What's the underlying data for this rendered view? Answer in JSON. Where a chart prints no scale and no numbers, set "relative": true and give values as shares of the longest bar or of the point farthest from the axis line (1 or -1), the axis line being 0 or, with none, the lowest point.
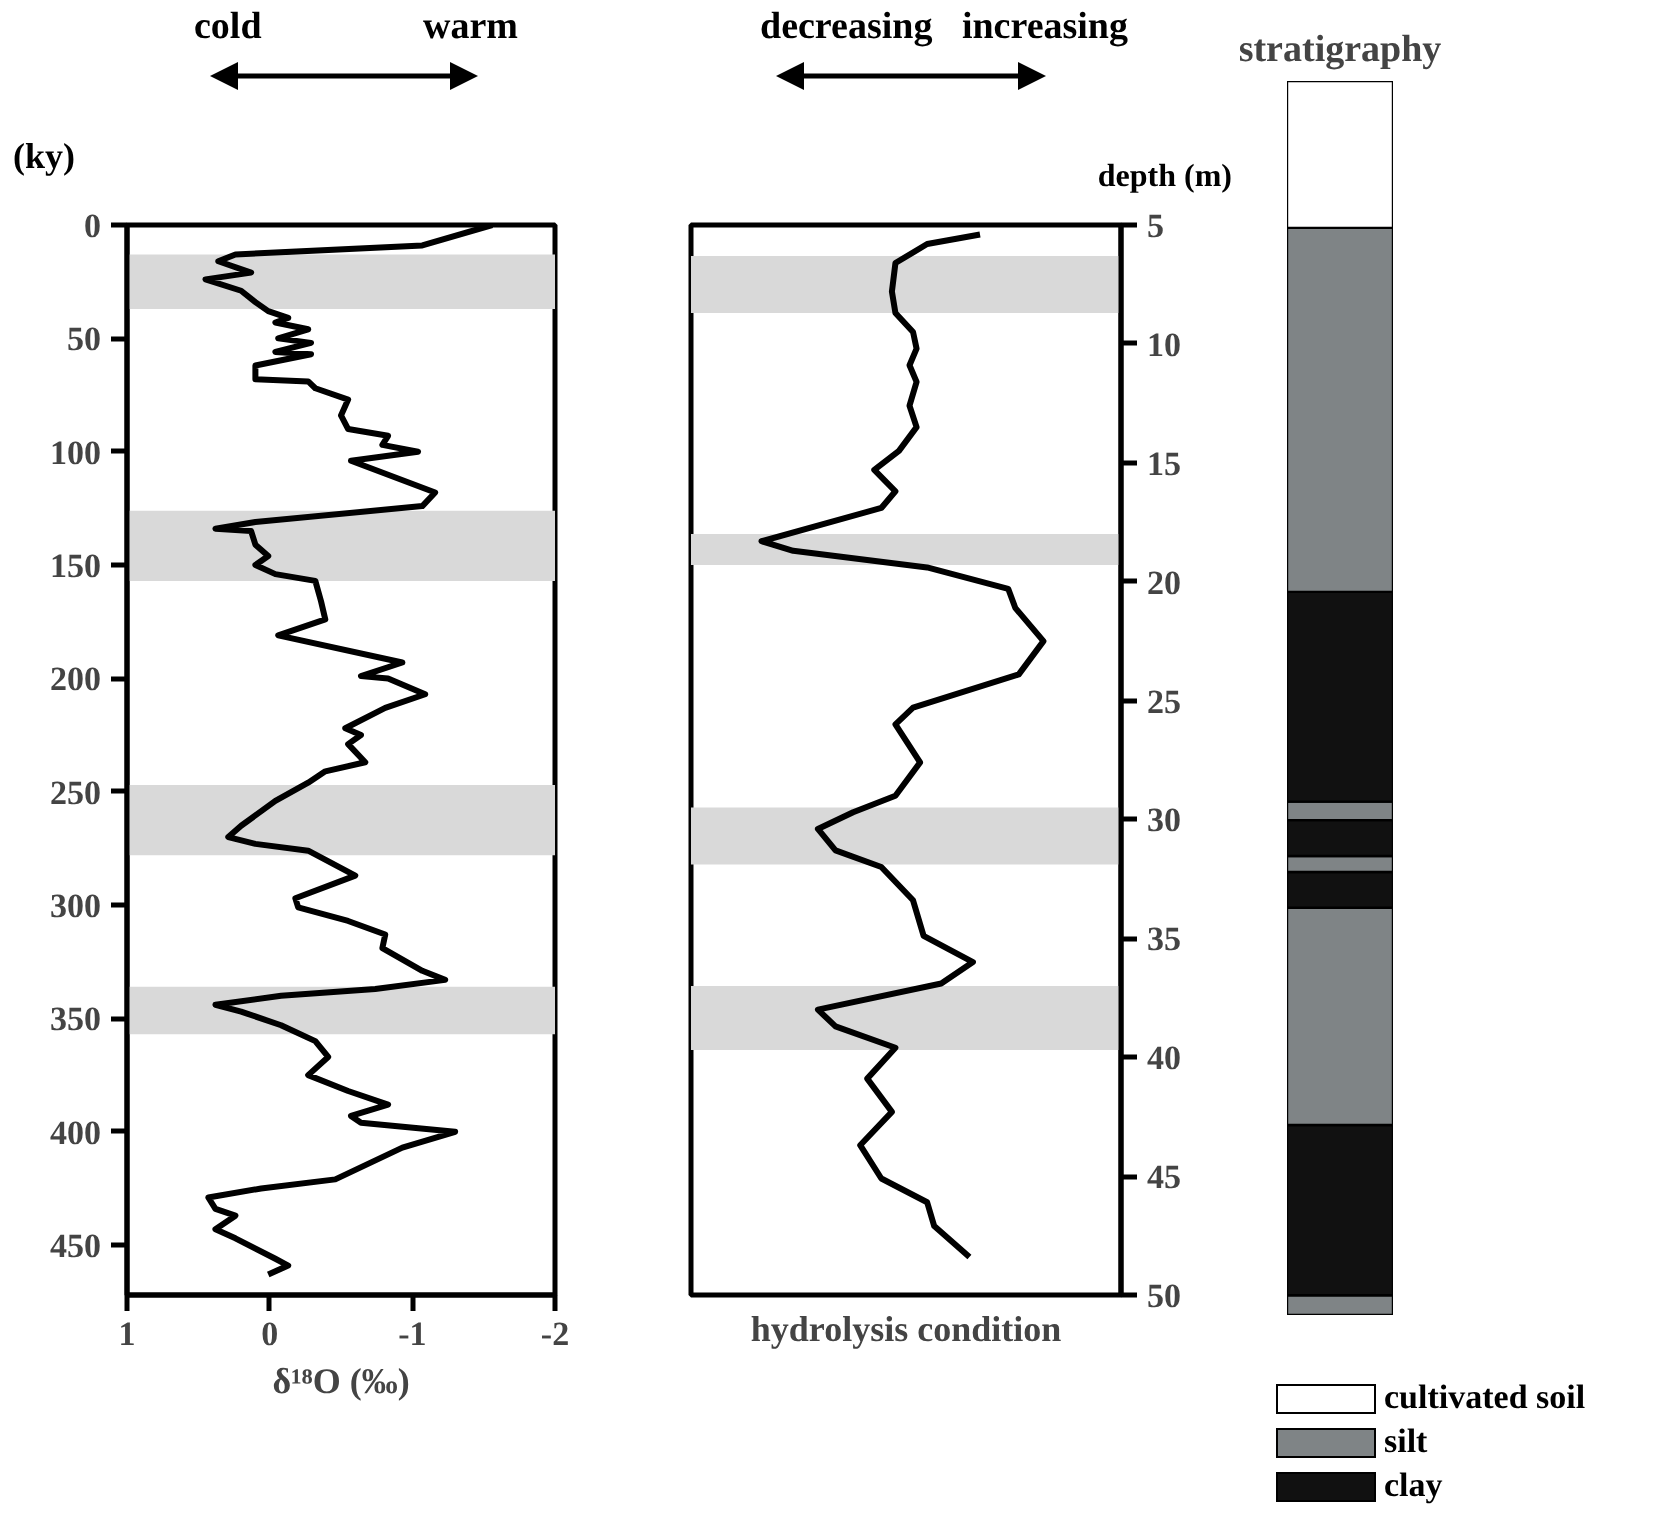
{
  "chart_data": [
    {
      "type": "line",
      "orientation": "horizontal",
      "annotations": [
        "cold",
        "warm"
      ],
      "xlabel": "δ¹⁸O (‰)",
      "ylabel": "(ky)",
      "xlim": [
        1,
        -2
      ],
      "xticks": [
        1,
        0,
        -1,
        -2
      ],
      "ylim": [
        472,
        0
      ],
      "yticks": [
        0,
        50,
        100,
        150,
        200,
        250,
        300,
        350,
        400,
        450
      ],
      "grid": false,
      "x": [
        0,
        9,
        13,
        16,
        21,
        24,
        29,
        34,
        38,
        41,
        43,
        46,
        50,
        52,
        56,
        57,
        62,
        68,
        69,
        72,
        77,
        84,
        90,
        93,
        97,
        100,
        104,
        118,
        124,
        131,
        134,
        135,
        141,
        146,
        150,
        154,
        157,
        166,
        174,
        181,
        193,
        199,
        200,
        207,
        213,
        222,
        225,
        229,
        237,
        241,
        246,
        254,
        265,
        270,
        273,
        276,
        287,
        297,
        301,
        307,
        313,
        319,
        329,
        333,
        337,
        340,
        344,
        347,
        353,
        360,
        367,
        375,
        382,
        388,
        393,
        396,
        400,
        407,
        421,
        425,
        429,
        434,
        437,
        443,
        447,
        456,
        459,
        463
      ],
      "series": [
        {
          "color": "#000000",
          "values": [
            -1.56,
            -1.07,
            0.24,
            0.36,
            0.13,
            0.45,
            0.2,
            0.1,
            0.01,
            -0.13,
            -0.04,
            -0.27,
            -0.06,
            -0.29,
            -0.04,
            -0.29,
            0.1,
            0.1,
            -0.27,
            -0.32,
            -0.55,
            -0.5,
            -0.55,
            -0.83,
            -0.79,
            -1.04,
            -0.57,
            -1.16,
            -1.07,
            0.1,
            0.38,
            0.13,
            0.1,
            0.01,
            0.1,
            -0.04,
            -0.32,
            -0.36,
            -0.39,
            -0.06,
            -0.93,
            -0.64,
            -0.83,
            -1.09,
            -0.81,
            -0.53,
            -0.64,
            -0.55,
            -0.67,
            -0.39,
            -0.27,
            -0.04,
            0.2,
            0.29,
            0.1,
            -0.27,
            -0.6,
            -0.18,
            -0.2,
            -0.55,
            -0.81,
            -0.79,
            -1.07,
            -1.23,
            -0.74,
            -0.08,
            0.38,
            0.2,
            -0.08,
            -0.32,
            -0.41,
            -0.27,
            -0.55,
            -0.83,
            -0.57,
            -0.64,
            -1.3,
            -0.93,
            -0.46,
            0.06,
            0.43,
            0.38,
            0.24,
            0.38,
            0.24,
            -0.04,
            -0.13,
            0.01
          ]
        }
      ],
      "bands": [
        {
          "axis": "y",
          "from": 13,
          "to": 37,
          "color": "#d9d9d9"
        },
        {
          "axis": "y",
          "from": 126,
          "to": 157,
          "color": "#d9d9d9"
        },
        {
          "axis": "y",
          "from": 247,
          "to": 278,
          "color": "#d9d9d9"
        },
        {
          "axis": "y",
          "from": 336,
          "to": 357,
          "color": "#d9d9d9"
        }
      ]
    },
    {
      "type": "line",
      "orientation": "horizontal",
      "relative": true,
      "annotations": [
        "decreasing",
        "increasing"
      ],
      "xlabel": "hydrolysis condition",
      "ylabel": "depth (m)",
      "ylim": [
        50,
        5
      ],
      "yticks": [
        5,
        10,
        15,
        20,
        25,
        30,
        35,
        40,
        45,
        50
      ],
      "grid": false,
      "tick_labels": "y",
      "x": [
        5.4,
        5.8,
        6.6,
        7.8,
        8.7,
        9.5,
        10.2,
        10.9,
        11.6,
        12.6,
        13.5,
        14.5,
        15.3,
        16.2,
        16.9,
        18.3,
        18.7,
        19.4,
        20.3,
        21.1,
        22.5,
        23.9,
        25.3,
        26.0,
        27.6,
        29.0,
        29.7,
        30.4,
        31.3,
        32.0,
        33.4,
        34.9,
        36.0,
        36.9,
        38.0,
        38.7,
        39.6,
        40.9,
        42.3,
        43.7,
        45.1,
        46.1,
        47.1,
        48.4
      ],
      "series": [
        {
          "color": "#000000",
          "values": [
            0.82,
            0.67,
            0.58,
            0.57,
            0.58,
            0.63,
            0.64,
            0.62,
            0.64,
            0.62,
            0.64,
            0.59,
            0.52,
            0.58,
            0.54,
            0.2,
            0.29,
            0.67,
            0.9,
            0.92,
            1.0,
            0.93,
            0.63,
            0.58,
            0.65,
            0.58,
            0.46,
            0.36,
            0.41,
            0.54,
            0.63,
            0.66,
            0.8,
            0.71,
            0.36,
            0.41,
            0.58,
            0.5,
            0.57,
            0.48,
            0.54,
            0.67,
            0.69,
            0.79
          ]
        }
      ],
      "bands": [
        {
          "axis": "y",
          "from": 6.3,
          "to": 8.7,
          "color": "#d9d9d9"
        },
        {
          "axis": "y",
          "from": 18.0,
          "to": 19.3,
          "color": "#d9d9d9"
        },
        {
          "axis": "y",
          "from": 29.5,
          "to": 31.9,
          "color": "#d9d9d9"
        },
        {
          "axis": "y",
          "from": 37.0,
          "to": 39.7,
          "color": "#d9d9d9"
        }
      ]
    },
    {
      "type": "bar",
      "title": "stratigraphy",
      "categories": [
        null
      ],
      "stacked": true,
      "relative": true,
      "tick_labels": false,
      "legend": "bottom",
      "series": [
        {
          "color": "#7f8486",
          "values": [
            0.016
          ]
        },
        {
          "color": "#111111",
          "values": [
            0.138
          ]
        },
        {
          "color": "#7f8486",
          "values": [
            0.176
          ]
        },
        {
          "color": "#111111",
          "values": [
            0.029
          ]
        },
        {
          "color": "#7f8486",
          "values": [
            0.013
          ]
        },
        {
          "color": "#111111",
          "values": [
            0.029
          ]
        },
        {
          "color": "#7f8486",
          "values": [
            0.015
          ]
        },
        {
          "name": "clay",
          "color": "#111111",
          "values": [
            0.17
          ]
        },
        {
          "name": "silt",
          "color": "#7f8486",
          "values": [
            0.295
          ]
        },
        {
          "name": "cultivated soil",
          "color": "#ffffff",
          "values": [
            0.119
          ]
        }
      ]
    }
  ]
}
